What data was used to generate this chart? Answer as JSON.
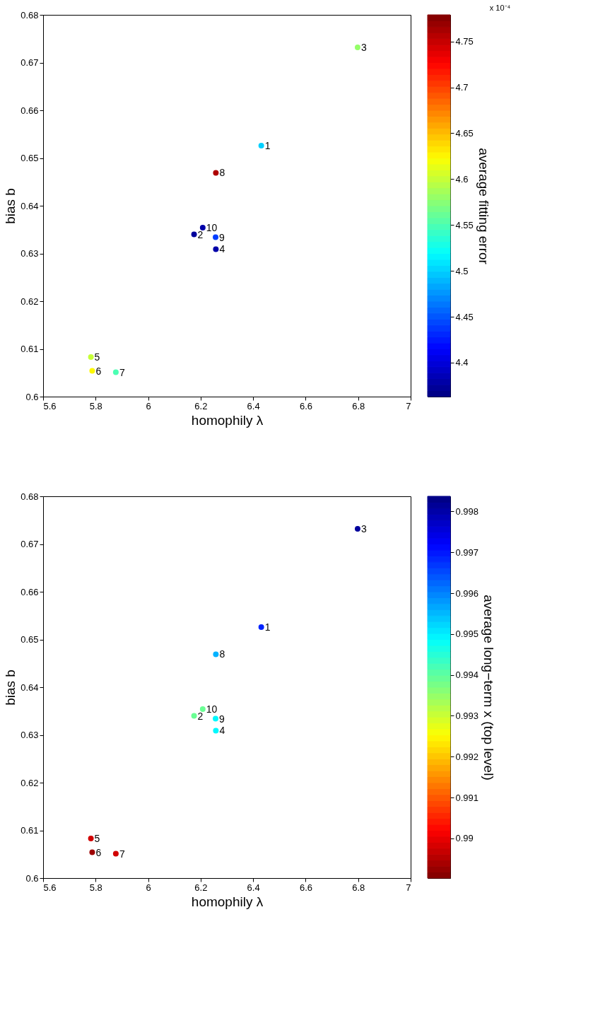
{
  "chart_data": [
    {
      "type": "scatter",
      "xlabel": "homophily λ",
      "ylabel": "bias b",
      "clabel": "average fitting error",
      "marker": "circle",
      "grid": false,
      "xlim": [
        5.6,
        7
      ],
      "xticks": [
        5.6,
        5.8,
        6,
        6.2,
        6.4,
        6.6,
        6.8,
        7
      ],
      "ylim": [
        0.6,
        0.68
      ],
      "yticks": [
        0.6,
        0.61,
        0.62,
        0.63,
        0.64,
        0.65,
        0.66,
        0.67,
        0.68
      ],
      "clim": [
        4.363,
        4.779
      ],
      "cticks": [
        4.4,
        4.45,
        4.5,
        4.55,
        4.6,
        4.65,
        4.7,
        4.75
      ],
      "x": [
        6.431,
        6.175,
        6.798,
        6.258,
        5.782,
        5.787,
        5.877,
        6.258,
        6.257,
        6.208
      ],
      "values": [
        0.6526,
        0.634,
        0.6732,
        0.6309,
        0.6083,
        0.6054,
        0.6051,
        0.6469,
        0.6334,
        0.6354
      ],
      "cvalues": [
        4.5,
        4.375,
        4.58,
        4.38,
        4.6,
        4.625,
        4.55,
        4.76,
        4.44,
        4.38
      ],
      "annotations": [
        "x 10⁻⁴",
        {
          "text": "1",
          "x": 6.431,
          "y": 0.6526
        },
        {
          "text": "2",
          "x": 6.175,
          "y": 0.634
        },
        {
          "text": "3",
          "x": 6.798,
          "y": 0.6732
        },
        {
          "text": "4",
          "x": 6.258,
          "y": 0.6309
        },
        {
          "text": "5",
          "x": 5.782,
          "y": 0.6083
        },
        {
          "text": "6",
          "x": 5.787,
          "y": 0.6054
        },
        {
          "text": "7",
          "x": 5.877,
          "y": 0.6051
        },
        {
          "text": "8",
          "x": 6.258,
          "y": 0.6469
        },
        {
          "text": "9",
          "x": 6.257,
          "y": 0.6334
        },
        {
          "text": "10",
          "x": 6.208,
          "y": 0.6354
        }
      ]
    },
    {
      "type": "scatter",
      "xlabel": "homophily λ",
      "ylabel": "bias b",
      "clabel": "average long−term x (top level)",
      "marker": "circle",
      "grid": false,
      "xlim": [
        5.6,
        7
      ],
      "xticks": [
        5.6,
        5.8,
        6,
        6.2,
        6.4,
        6.6,
        6.8,
        7
      ],
      "ylim": [
        0.6,
        0.68
      ],
      "yticks": [
        0.6,
        0.61,
        0.62,
        0.63,
        0.64,
        0.65,
        0.66,
        0.67,
        0.68
      ],
      "clim": [
        0.99837,
        0.98903
      ],
      "cticks": [
        0.99,
        0.991,
        0.992,
        0.993,
        0.994,
        0.995,
        0.996,
        0.997,
        0.998
      ],
      "x": [
        6.431,
        6.175,
        6.798,
        6.258,
        5.782,
        5.787,
        5.877,
        6.258,
        6.257,
        6.208
      ],
      "values": [
        0.6526,
        0.634,
        0.6732,
        0.6309,
        0.6083,
        0.6054,
        0.6051,
        0.6469,
        0.6334,
        0.6354
      ],
      "cvalues": [
        0.99688,
        0.99389,
        0.99809,
        0.99491,
        0.98978,
        0.98931,
        0.98978,
        0.99557,
        0.99491,
        0.99389
      ],
      "annotations": [
        {
          "text": "1",
          "x": 6.431,
          "y": 0.6526
        },
        {
          "text": "2",
          "x": 6.175,
          "y": 0.634
        },
        {
          "text": "3",
          "x": 6.798,
          "y": 0.6732
        },
        {
          "text": "4",
          "x": 6.258,
          "y": 0.6309
        },
        {
          "text": "5",
          "x": 5.782,
          "y": 0.6083
        },
        {
          "text": "6",
          "x": 5.787,
          "y": 0.6054
        },
        {
          "text": "7",
          "x": 5.877,
          "y": 0.6051
        },
        {
          "text": "8",
          "x": 6.258,
          "y": 0.6469
        },
        {
          "text": "9",
          "x": 6.257,
          "y": 0.6334
        },
        {
          "text": "10",
          "x": 6.208,
          "y": 0.6354
        }
      ]
    }
  ]
}
